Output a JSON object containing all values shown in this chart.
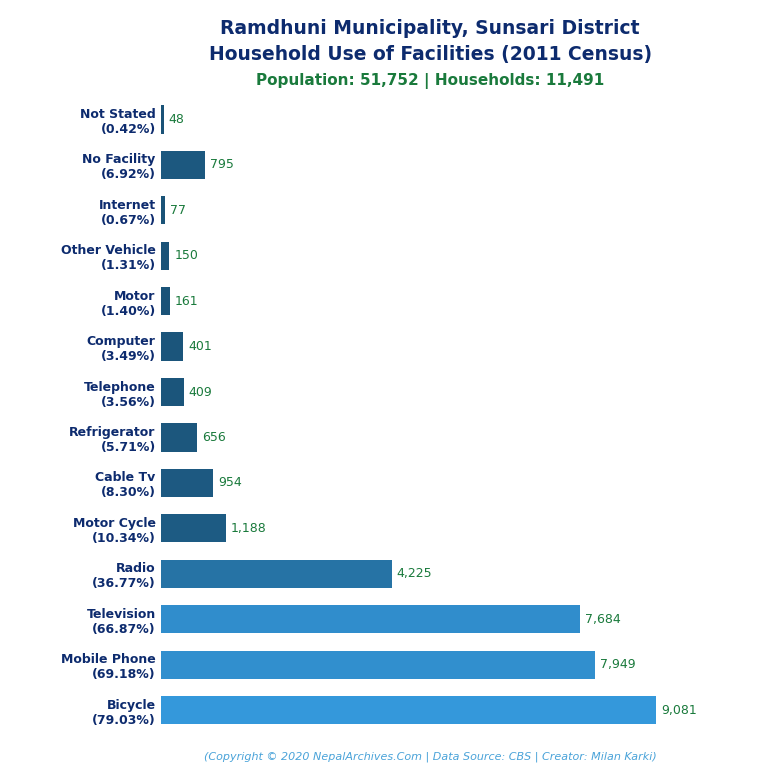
{
  "title_line1": "Ramdhuni Municipality, Sunsari District",
  "title_line2": "Household Use of Facilities (2011 Census)",
  "subtitle": "Population: 51,752 | Households: 11,491",
  "footer": "(Copyright © 2020 NepalArchives.Com | Data Source: CBS | Creator: Milan Karki)",
  "categories": [
    "Not Stated\n(0.42%)",
    "No Facility\n(6.92%)",
    "Internet\n(0.67%)",
    "Other Vehicle\n(1.31%)",
    "Motor\n(1.40%)",
    "Computer\n(3.49%)",
    "Telephone\n(3.56%)",
    "Refrigerator\n(5.71%)",
    "Cable Tv\n(8.30%)",
    "Motor Cycle\n(10.34%)",
    "Radio\n(36.77%)",
    "Television\n(66.87%)",
    "Mobile Phone\n(69.18%)",
    "Bicycle\n(79.03%)"
  ],
  "values": [
    48,
    795,
    77,
    150,
    161,
    401,
    409,
    656,
    954,
    1188,
    4225,
    7684,
    7949,
    9081
  ],
  "value_labels": [
    "48",
    "795",
    "77",
    "150",
    "161",
    "401",
    "409",
    "656",
    "954",
    "1,188",
    "4,225",
    "7,684",
    "7,949",
    "9,081"
  ],
  "title_color": "#0d2b6e",
  "subtitle_color": "#1a7a3c",
  "value_label_color": "#1a7a3c",
  "footer_color": "#4aa3d9",
  "background_color": "#ffffff",
  "xlim": [
    0,
    10000
  ],
  "bar_color_dark": [
    0.102,
    0.322,
    0.463
  ],
  "bar_color_light": [
    0.204,
    0.596,
    0.859
  ]
}
